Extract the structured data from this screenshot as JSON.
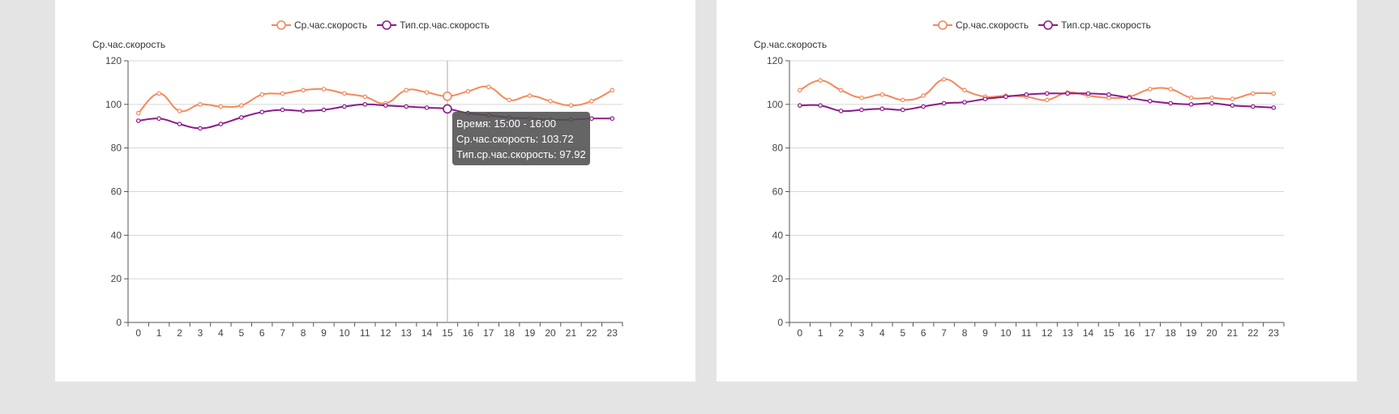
{
  "colors": {
    "avg": "#f4895a",
    "typ": "#8b1a8b"
  },
  "chart_data": [
    {
      "type": "line",
      "legend_position": "top-center",
      "ylabel": "Ср.час.скорость",
      "ylim": [
        0,
        120
      ],
      "yticks": [
        "0",
        "20",
        "40",
        "60",
        "80",
        "100",
        "120"
      ],
      "categories": [
        "0",
        "1",
        "2",
        "3",
        "4",
        "5",
        "6",
        "7",
        "8",
        "9",
        "10",
        "11",
        "12",
        "13",
        "14",
        "15",
        "16",
        "17",
        "18",
        "19",
        "20",
        "21",
        "22",
        "23"
      ],
      "grid": true,
      "series": [
        {
          "name": "Ср.час.скорость",
          "color": "#f4895a",
          "values": [
            96,
            105,
            97,
            100,
            99,
            99.5,
            104.5,
            105,
            106.5,
            107,
            105,
            103.5,
            100.5,
            106.5,
            105.5,
            103.72,
            106,
            108,
            102,
            104,
            101.5,
            99.5,
            101.5,
            106.5
          ]
        },
        {
          "name": "Тип.ср.час.скорость",
          "color": "#8b1a8b",
          "values": [
            92.5,
            93.5,
            91,
            89,
            91,
            94,
            96.5,
            97.5,
            97,
            97.5,
            99,
            100,
            99.5,
            99,
            98.5,
            97.92,
            96,
            95,
            94,
            93.5,
            93,
            93,
            93.5,
            93.5
          ]
        }
      ],
      "tooltip": {
        "category": "15",
        "lines": [
          "Время: 15:00 - 16:00",
          "Ср.час.скорость: 103.72",
          "Тип.ср.час.скорость: 97.92"
        ]
      }
    },
    {
      "type": "line",
      "legend_position": "top-center",
      "ylabel": "Ср.час.скорость",
      "ylim": [
        0,
        120
      ],
      "yticks": [
        "0",
        "20",
        "40",
        "60",
        "80",
        "100",
        "120"
      ],
      "categories": [
        "0",
        "1",
        "2",
        "3",
        "4",
        "5",
        "6",
        "7",
        "8",
        "9",
        "10",
        "11",
        "12",
        "13",
        "14",
        "15",
        "16",
        "17",
        "18",
        "19",
        "20",
        "21",
        "22",
        "23"
      ],
      "grid": true,
      "series": [
        {
          "name": "Ср.час.скорость",
          "color": "#f4895a",
          "values": [
            106.5,
            111,
            106.5,
            103,
            104.5,
            102,
            104,
            111.5,
            106.5,
            103.5,
            104,
            103.5,
            102,
            105.5,
            104,
            103,
            103.5,
            107,
            107,
            103,
            103,
            102.5,
            105,
            105
          ]
        },
        {
          "name": "Тип.ср.час.скорость",
          "color": "#8b1a8b",
          "values": [
            99.5,
            99.5,
            97,
            97.5,
            98,
            97.5,
            99,
            100.5,
            101,
            102.5,
            103.5,
            104.5,
            105,
            105,
            105,
            104.5,
            103,
            101.5,
            100.5,
            100,
            100.5,
            99.5,
            99,
            98.5
          ]
        }
      ]
    }
  ]
}
